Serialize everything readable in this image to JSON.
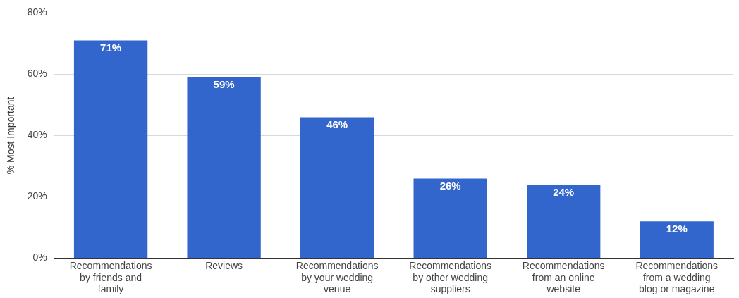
{
  "chart_data": {
    "type": "bar",
    "ylabel": "% Most Important",
    "categories": [
      "Recommendations by friends and family",
      "Reviews",
      "Recommendations by your wedding venue",
      "Recommendations by other wedding suppliers",
      "Recommendations from an online website",
      "Recommendations from a wedding blog or magazine"
    ],
    "values": [
      71,
      59,
      46,
      26,
      24,
      12
    ],
    "value_labels": [
      "71%",
      "59%",
      "46%",
      "26%",
      "24%",
      "12%"
    ],
    "color": "#3366cc",
    "ylim": [
      0,
      80
    ],
    "yticks": [
      {
        "value": 0,
        "label": "0%"
      },
      {
        "value": 20,
        "label": "20%"
      },
      {
        "value": 40,
        "label": "40%"
      },
      {
        "value": 60,
        "label": "60%"
      },
      {
        "value": 80,
        "label": "80%"
      }
    ],
    "grid": "y",
    "legend": false
  }
}
